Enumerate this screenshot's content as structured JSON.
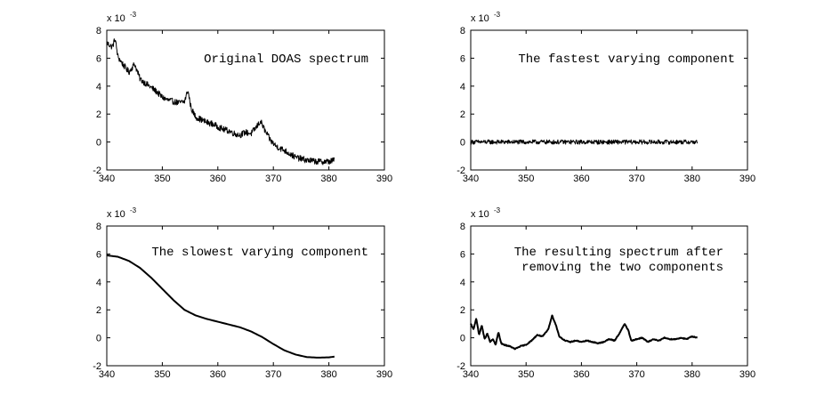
{
  "chart_data": [
    {
      "type": "line",
      "title": "",
      "xlabel": "",
      "ylabel": "",
      "annotation": [
        "Original DOAS spectrum"
      ],
      "scale_label": "x 10",
      "scale_exp": "-3",
      "xlim": [
        340,
        390
      ],
      "ylim": [
        -2,
        8
      ],
      "xticks": [
        "340",
        "350",
        "360",
        "370",
        "380",
        "390"
      ],
      "yticks": [
        "-2",
        "0",
        "2",
        "4",
        "6",
        "8"
      ],
      "grid": false,
      "legend": "none",
      "noise": 0.22,
      "series": [
        {
          "x": [
            340,
            341,
            341.5,
            342,
            343,
            344,
            345,
            346,
            347,
            348,
            349,
            350,
            351,
            352,
            353,
            354,
            354.6,
            355.2,
            356,
            357,
            358,
            359,
            360,
            361,
            362,
            363,
            364,
            365,
            366,
            367,
            367.7,
            368.5,
            369.5,
            370.5,
            372,
            374,
            376,
            378,
            380,
            381
          ],
          "values": [
            7.1,
            6.8,
            7.4,
            6.1,
            5.5,
            5.0,
            5.6,
            4.5,
            4.2,
            3.9,
            3.6,
            3.2,
            3.0,
            2.9,
            2.8,
            2.9,
            3.7,
            2.4,
            1.8,
            1.6,
            1.4,
            1.3,
            1.1,
            0.9,
            0.8,
            0.6,
            0.5,
            0.7,
            0.6,
            1.1,
            1.5,
            0.8,
            0.1,
            -0.3,
            -0.6,
            -1.1,
            -1.3,
            -1.4,
            -1.4,
            -1.3
          ]
        }
      ]
    },
    {
      "type": "line",
      "title": "",
      "xlabel": "",
      "ylabel": "",
      "annotation": [
        "The fastest varying component"
      ],
      "scale_label": "x 10",
      "scale_exp": "-3",
      "xlim": [
        340,
        390
      ],
      "ylim": [
        -2,
        8
      ],
      "xticks": [
        "340",
        "350",
        "360",
        "370",
        "380",
        "390"
      ],
      "yticks": [
        "-2",
        "0",
        "2",
        "4",
        "6",
        "8"
      ],
      "grid": false,
      "legend": "none",
      "noise": 0.16,
      "series": [
        {
          "x": [
            340,
            381
          ],
          "values": [
            0,
            0
          ]
        }
      ]
    },
    {
      "type": "line",
      "title": "",
      "xlabel": "",
      "ylabel": "",
      "annotation": [
        "The slowest varying component"
      ],
      "scale_label": "x 10",
      "scale_exp": "-3",
      "xlim": [
        340,
        390
      ],
      "ylim": [
        -2,
        8
      ],
      "xticks": [
        "340",
        "350",
        "360",
        "370",
        "380",
        "390"
      ],
      "yticks": [
        "-2",
        "0",
        "2",
        "4",
        "6",
        "8"
      ],
      "grid": false,
      "legend": "none",
      "noise": 0,
      "series": [
        {
          "x": [
            340,
            342,
            344,
            346,
            348,
            350,
            352,
            354,
            356,
            358,
            360,
            362,
            364,
            366,
            368,
            370,
            372,
            374,
            376,
            378,
            380,
            381
          ],
          "values": [
            5.9,
            5.8,
            5.5,
            5.0,
            4.3,
            3.5,
            2.7,
            2.0,
            1.6,
            1.35,
            1.15,
            0.95,
            0.75,
            0.45,
            0.05,
            -0.45,
            -0.9,
            -1.2,
            -1.38,
            -1.42,
            -1.4,
            -1.35
          ]
        }
      ]
    },
    {
      "type": "line",
      "title": "",
      "xlabel": "",
      "ylabel": "",
      "annotation": [
        "The resulting spectrum after",
        "removing the two components"
      ],
      "scale_label": "x 10",
      "scale_exp": "-3",
      "xlim": [
        340,
        390
      ],
      "ylim": [
        -2,
        8
      ],
      "xticks": [
        "340",
        "350",
        "360",
        "370",
        "380",
        "390"
      ],
      "yticks": [
        "-2",
        "0",
        "2",
        "4",
        "6",
        "8"
      ],
      "grid": false,
      "legend": "none",
      "noise": 0.03,
      "series": [
        {
          "x": [
            340,
            340.5,
            341,
            341.5,
            342,
            342.5,
            343,
            343.5,
            344,
            344.5,
            345,
            345.5,
            346,
            347,
            348,
            349,
            350,
            351,
            352,
            353,
            354,
            354.7,
            355.4,
            356,
            357,
            358,
            359,
            360,
            361,
            362,
            363,
            364,
            365,
            366,
            367,
            367.8,
            368.5,
            369,
            370,
            371,
            372,
            373,
            374,
            375,
            376,
            377,
            378,
            379,
            380,
            381
          ],
          "values": [
            1.0,
            0.6,
            1.4,
            0.2,
            0.9,
            -0.1,
            0.3,
            -0.3,
            -0.1,
            -0.5,
            0.4,
            -0.4,
            -0.5,
            -0.6,
            -0.8,
            -0.6,
            -0.5,
            -0.2,
            0.2,
            0.1,
            0.6,
            1.6,
            0.9,
            0.1,
            -0.2,
            -0.3,
            -0.2,
            -0.3,
            -0.2,
            -0.3,
            -0.4,
            -0.3,
            -0.1,
            -0.2,
            0.4,
            1.0,
            0.5,
            -0.2,
            -0.1,
            0.0,
            -0.3,
            -0.1,
            -0.2,
            0.0,
            -0.1,
            -0.1,
            0.0,
            -0.1,
            0.1,
            0.0
          ]
        }
      ]
    }
  ]
}
